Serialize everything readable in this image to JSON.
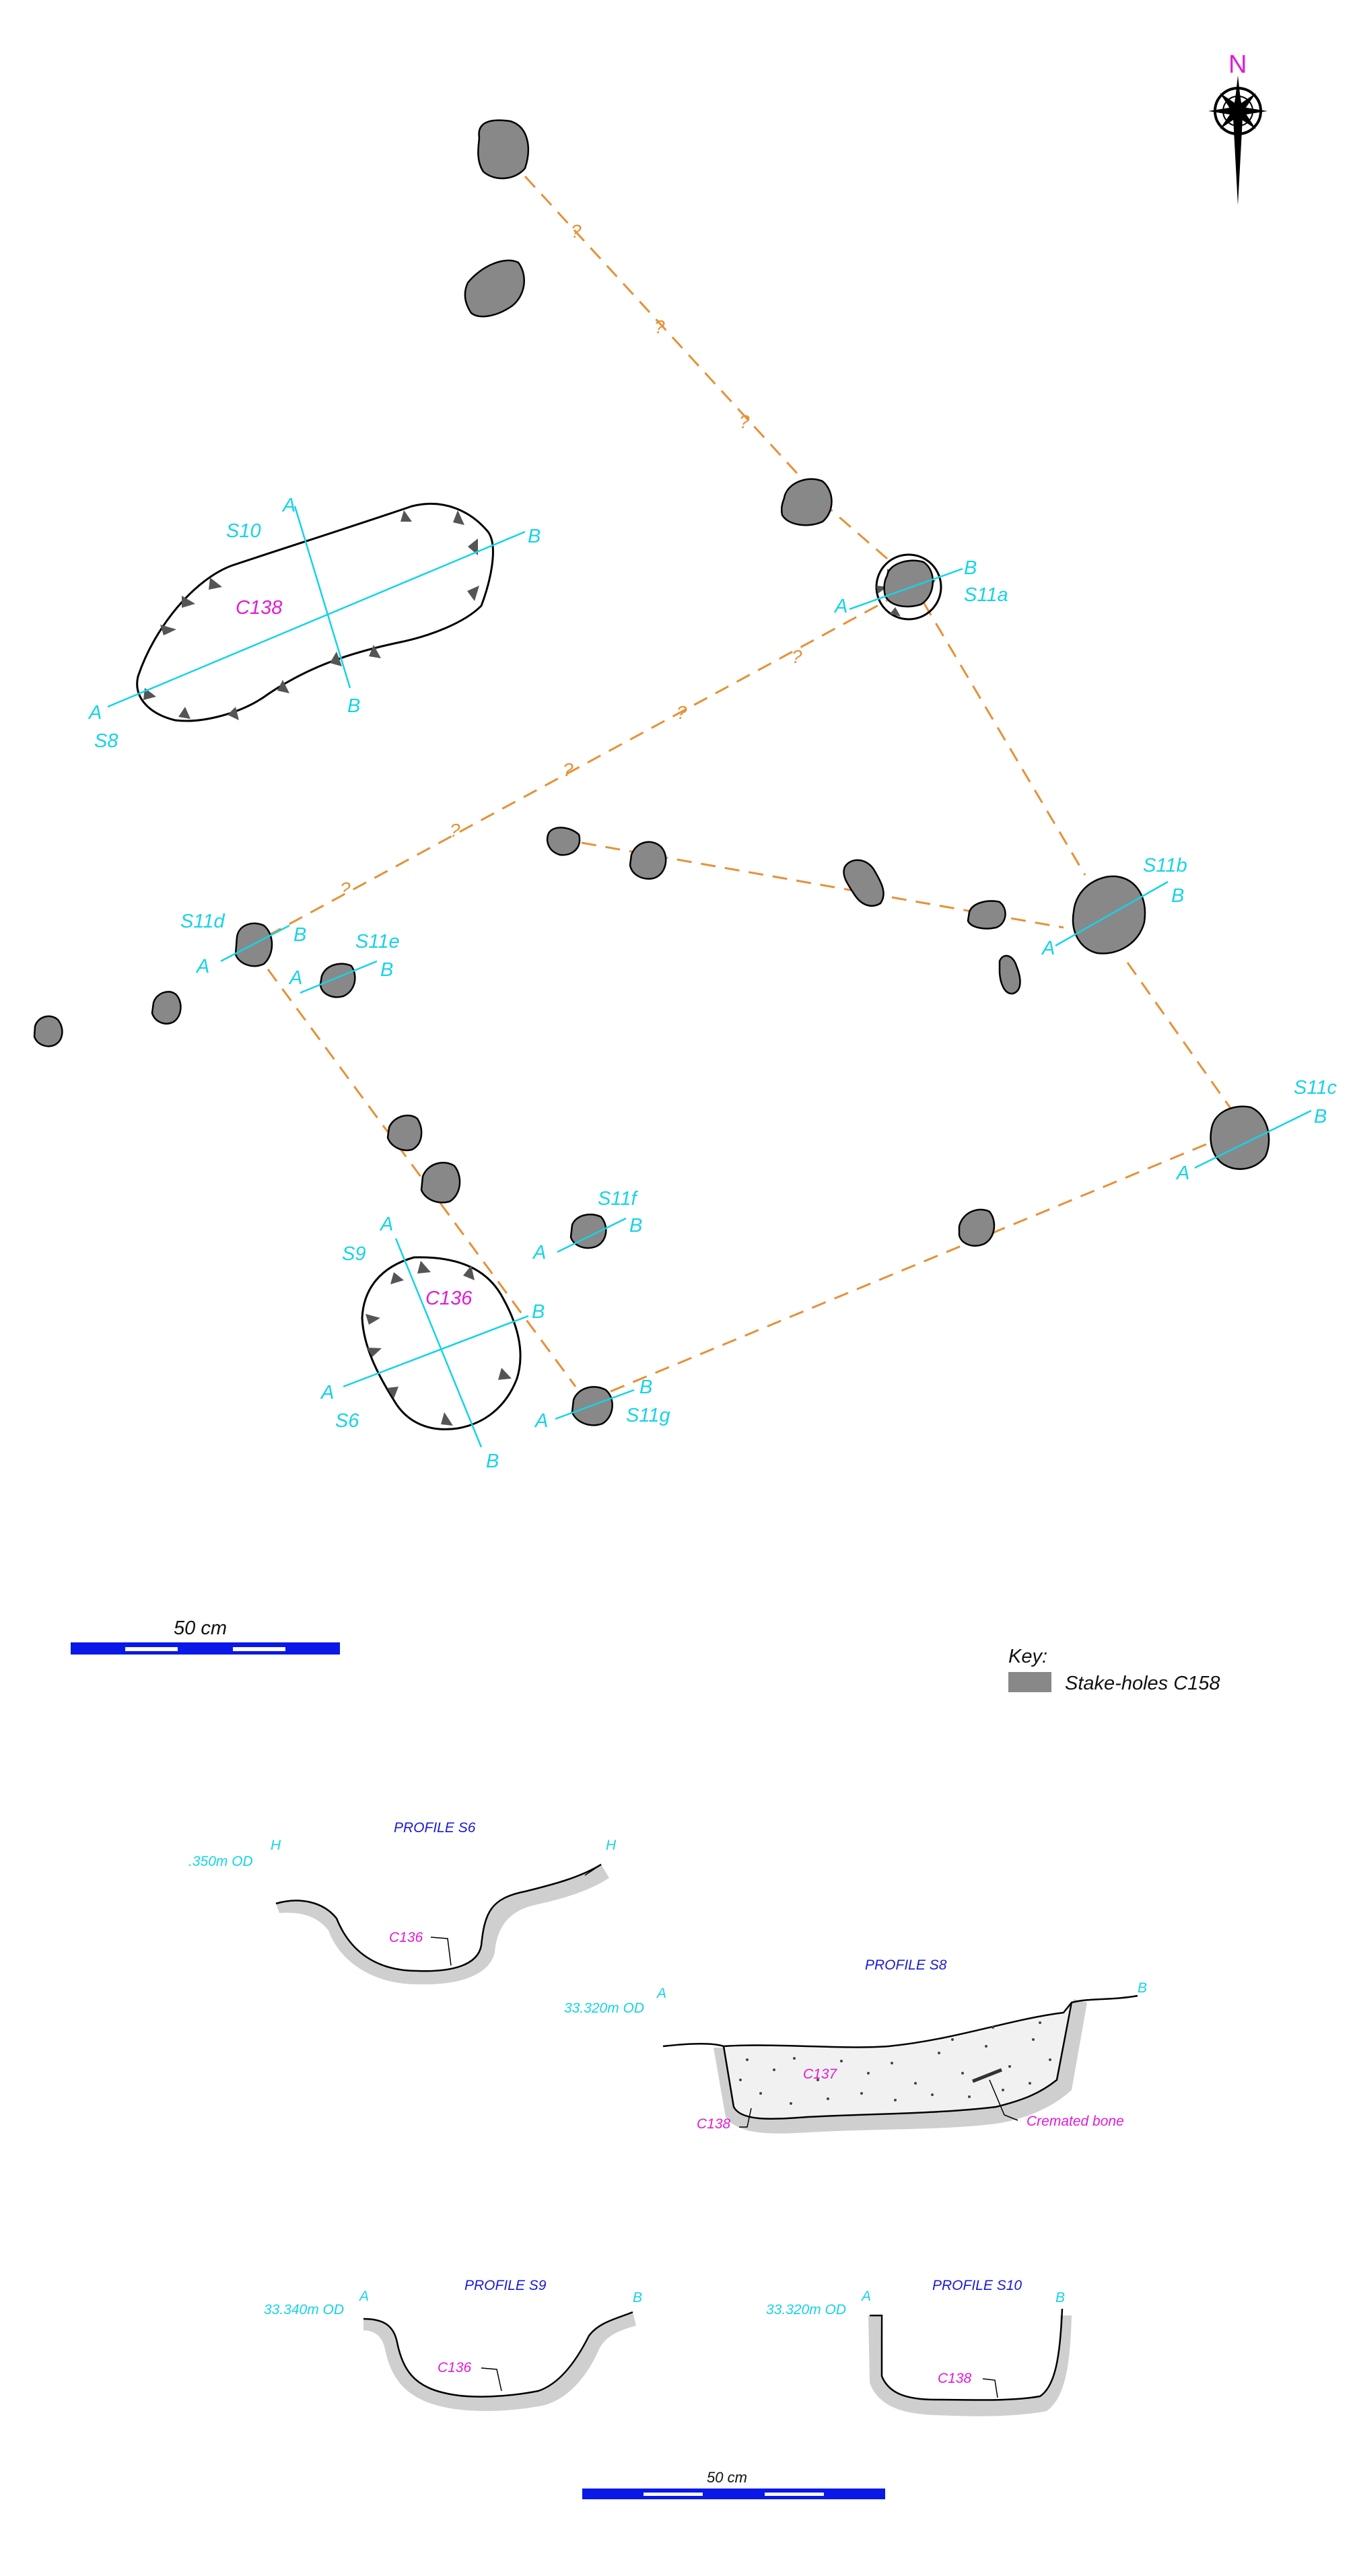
{
  "compass": {
    "north_label": "N"
  },
  "features": {
    "pit_c138": {
      "label": "C138"
    },
    "pit_c136": {
      "label": "C136"
    }
  },
  "sections": {
    "s10": "S10",
    "s8": "S8",
    "s11a": "S11a",
    "s11b": "S11b",
    "s11c": "S11c",
    "s11d": "S11d",
    "s11e": "S11e",
    "s11f": "S11f",
    "s11g": "S11g",
    "s9": "S9",
    "s6": "S6"
  },
  "section_ends": {
    "a": "A",
    "b": "B",
    "h": "H"
  },
  "uncertain_marker": "?",
  "scale_bar": {
    "label": "50 cm"
  },
  "key": {
    "title": "Key:",
    "items": [
      {
        "label": "Stake-holes C158",
        "color": "#888888"
      }
    ]
  },
  "profiles": {
    "s6": {
      "title": "PROFILE S6",
      "level": ".350m OD",
      "left_end": "H",
      "right_end": "H",
      "cut_label": "C136"
    },
    "s8": {
      "title": "PROFILE S8",
      "level": "33.320m OD",
      "left_end": "A",
      "right_end": "B",
      "fill_label": "C137",
      "cut_label": "C138",
      "note": "Cremated bone"
    },
    "s9": {
      "title": "PROFILE S9",
      "level": "33.340m OD",
      "left_end": "A",
      "right_end": "B",
      "cut_label": "C136"
    },
    "s10": {
      "title": "PROFILE S10",
      "level": "33.320m OD",
      "left_end": "A",
      "right_end": "B",
      "cut_label": "C138"
    }
  },
  "colors": {
    "section_line": "#16d3e6",
    "context_label": "#e01bd8",
    "profile_title": "#1a1ad4",
    "alignment_line": "#e69138",
    "stake_fill": "#888888",
    "scale_bar": "#0a18e8"
  }
}
